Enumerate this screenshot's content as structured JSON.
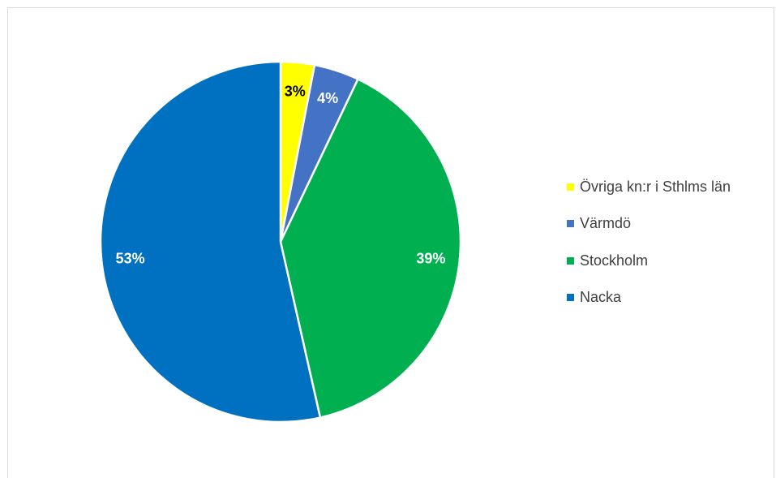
{
  "chart_data": {
    "type": "pie",
    "title": "",
    "slices": [
      {
        "label": "Övriga kn:r i Sthlms län",
        "value": 3,
        "display": "3%",
        "color": "#FFFF00",
        "label_color": "#000000"
      },
      {
        "label": "Värmdö",
        "value": 4,
        "display": "4%",
        "color": "#4472C4",
        "label_color": "#FFFFFF"
      },
      {
        "label": "Stockholm",
        "value": 39,
        "display": "39%",
        "color": "#00B050",
        "label_color": "#FFFFFF"
      },
      {
        "label": "Nacka",
        "value": 53,
        "display": "53%",
        "color": "#0070C0",
        "label_color": "#FFFFFF"
      }
    ],
    "legend_position": "right",
    "start_angle_deg": 0,
    "direction": "clockwise"
  }
}
